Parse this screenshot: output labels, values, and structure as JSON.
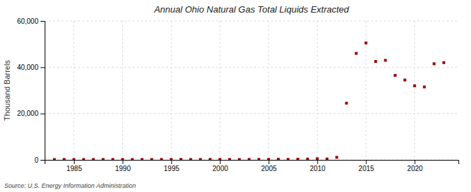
{
  "chart_data": {
    "type": "scatter",
    "title": "Annual Ohio Natural Gas Total Liquids Extracted",
    "ylabel": "Thousand Barrels",
    "annotations": [
      "Source: U.S. Energy Information Administration"
    ],
    "x": [
      1983,
      1984,
      1985,
      1986,
      1987,
      1988,
      1989,
      1990,
      1991,
      1992,
      1993,
      1994,
      1995,
      1996,
      1997,
      1998,
      1999,
      2000,
      2001,
      2002,
      2003,
      2004,
      2005,
      2006,
      2007,
      2008,
      2009,
      2010,
      2011,
      2012,
      2013,
      2014,
      2015,
      2016,
      2017,
      2018,
      2019,
      2020,
      2021,
      2022,
      2023
    ],
    "values": [
      150,
      180,
      160,
      160,
      170,
      180,
      200,
      180,
      160,
      180,
      170,
      180,
      200,
      200,
      190,
      180,
      200,
      200,
      180,
      160,
      180,
      200,
      220,
      250,
      200,
      280,
      350,
      500,
      400,
      1100,
      24500,
      46000,
      50500,
      42500,
      43000,
      36500,
      34500,
      32000,
      31500,
      41500,
      42000
    ],
    "color": "#990000",
    "marker": "square",
    "xlim": [
      1982,
      2024.5
    ],
    "xticks": [
      1985,
      1990,
      1995,
      2000,
      2005,
      2010,
      2015,
      2020
    ],
    "ylim": [
      0,
      60000
    ],
    "yticks": [
      0,
      {
        "value": 20000,
        "label": "20,000"
      },
      {
        "value": 40000,
        "label": "40,000"
      },
      {
        "value": 60000,
        "label": "60,000"
      }
    ],
    "grid": true
  }
}
